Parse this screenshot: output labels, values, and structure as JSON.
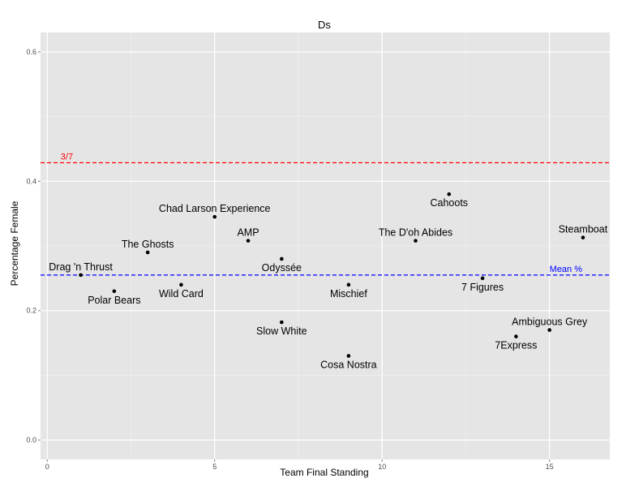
{
  "chart_data": {
    "type": "scatter",
    "title": "Ds",
    "xlabel": "Team Final Standing",
    "ylabel": "Percentage Female",
    "xlim": [
      -0.2,
      16.8
    ],
    "ylim": [
      -0.03,
      0.63
    ],
    "x_ticks": [
      0,
      5,
      10,
      15
    ],
    "x_tick_labels": [
      "0",
      "5",
      "10",
      "15"
    ],
    "y_ticks": [
      0.0,
      0.2,
      0.4,
      0.6
    ],
    "y_tick_labels": [
      "0.0",
      "0.2",
      "0.4",
      "0.6"
    ],
    "grid": true,
    "colors": {
      "panel": "#e5e5e5",
      "grid": "#ffffff",
      "point": "#000000",
      "ref_line_1": "#ff0000",
      "ref_line_2": "#0000ff"
    },
    "reference_lines": [
      {
        "y": 0.4286,
        "label": "3/7",
        "color": "#ff0000",
        "style": "dashed",
        "label_x": 0.4
      },
      {
        "y": 0.255,
        "label": "Mean %",
        "color": "#0000ff",
        "style": "dashed",
        "label_x": 15.0
      }
    ],
    "points": [
      {
        "name": "Drag 'n Thrust",
        "x": 1,
        "y": 0.255,
        "label_pos": "above"
      },
      {
        "name": "Polar Bears",
        "x": 2,
        "y": 0.23,
        "label_pos": "below"
      },
      {
        "name": "The Ghosts",
        "x": 3,
        "y": 0.29,
        "label_pos": "above"
      },
      {
        "name": "Wild Card",
        "x": 4,
        "y": 0.24,
        "label_pos": "below"
      },
      {
        "name": "Chad Larson Experience",
        "x": 5,
        "y": 0.345,
        "label_pos": "above"
      },
      {
        "name": "AMP",
        "x": 6,
        "y": 0.308,
        "label_pos": "above"
      },
      {
        "name": "Odyssée",
        "x": 7,
        "y": 0.28,
        "label_pos": "below"
      },
      {
        "name": "Slow White",
        "x": 7,
        "y": 0.182,
        "label_pos": "below"
      },
      {
        "name": "Mischief",
        "x": 9,
        "y": 0.24,
        "label_pos": "below"
      },
      {
        "name": "Cosa Nostra",
        "x": 9,
        "y": 0.13,
        "label_pos": "below"
      },
      {
        "name": "The D'oh Abides",
        "x": 11,
        "y": 0.308,
        "label_pos": "above"
      },
      {
        "name": "Cahoots",
        "x": 12,
        "y": 0.38,
        "label_pos": "below"
      },
      {
        "name": "7 Figures",
        "x": 13,
        "y": 0.25,
        "label_pos": "below"
      },
      {
        "name": "7Express",
        "x": 14,
        "y": 0.16,
        "label_pos": "below"
      },
      {
        "name": "Ambiguous Grey",
        "x": 15,
        "y": 0.17,
        "label_pos": "above"
      },
      {
        "name": "Steamboat",
        "x": 16,
        "y": 0.313,
        "label_pos": "above"
      }
    ]
  }
}
